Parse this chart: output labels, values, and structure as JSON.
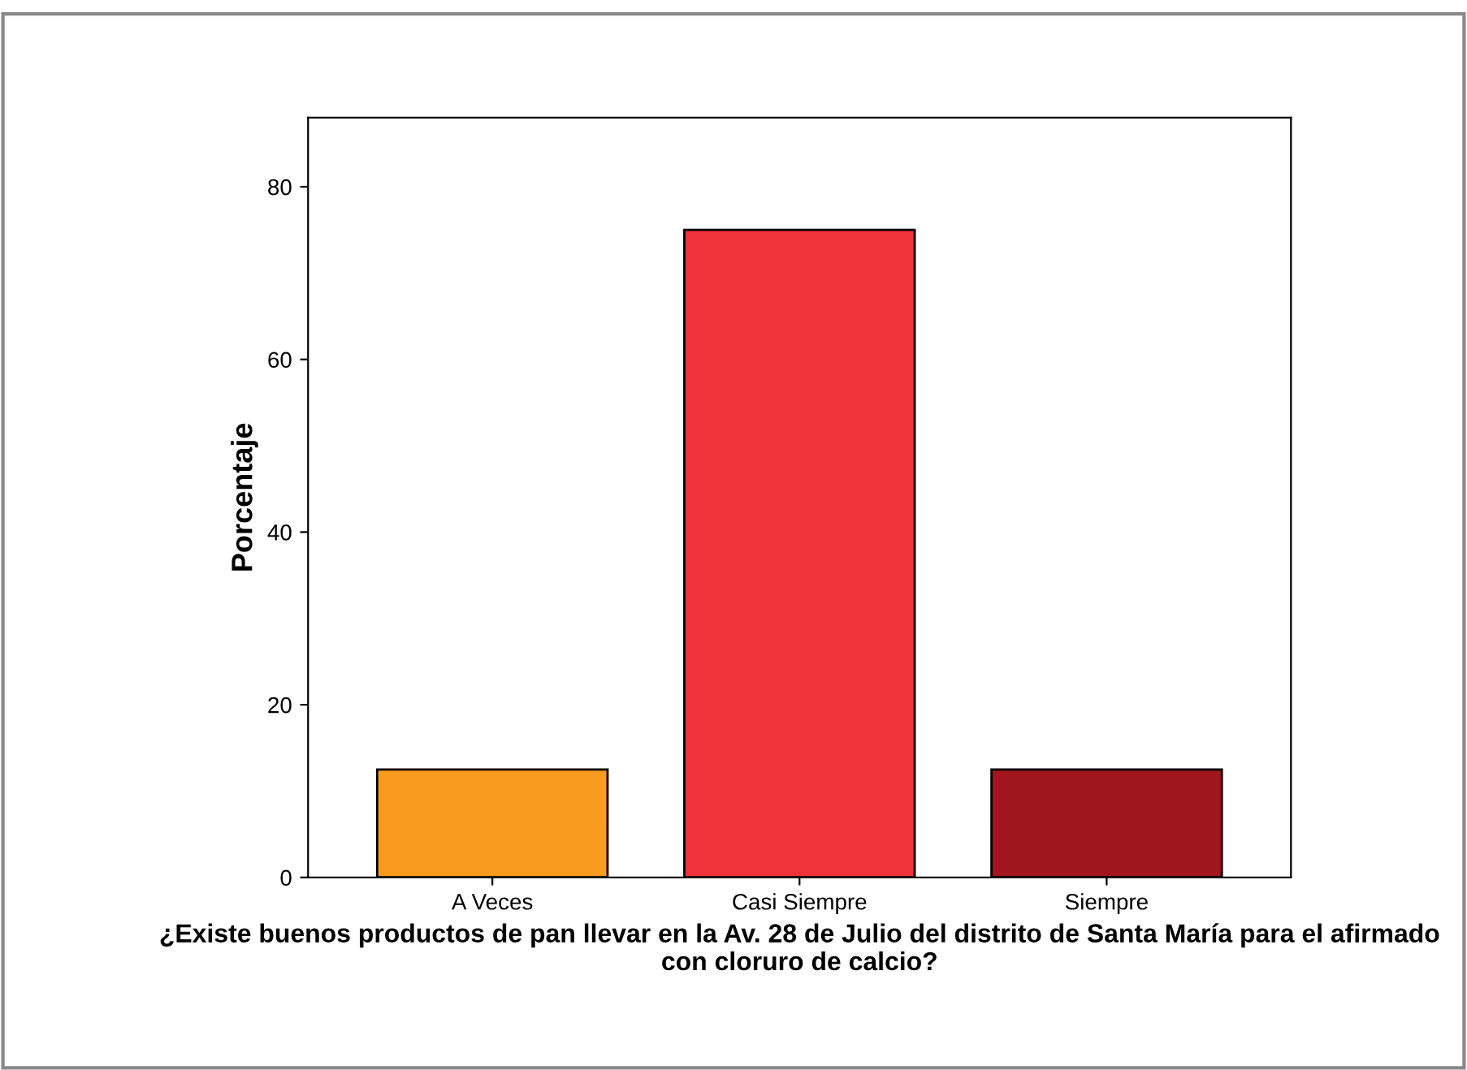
{
  "chart_data": {
    "type": "bar",
    "categories": [
      "A Veces",
      "Casi Siempre",
      "Siempre"
    ],
    "values": [
      12.5,
      75,
      12.5
    ],
    "colors": [
      "#f99b1e",
      "#f0323a",
      "#a0161c"
    ],
    "ylabel": "Porcentaje",
    "xlabel": "¿Existe buenos productos de pan llevar en la Av. 28 de Julio del distrito de Santa María para el afirmado con cloruro de calcio?",
    "ylim": [
      0,
      88
    ],
    "yticks": [
      0,
      20,
      40,
      60,
      80
    ],
    "grid": false,
    "legend": false
  }
}
